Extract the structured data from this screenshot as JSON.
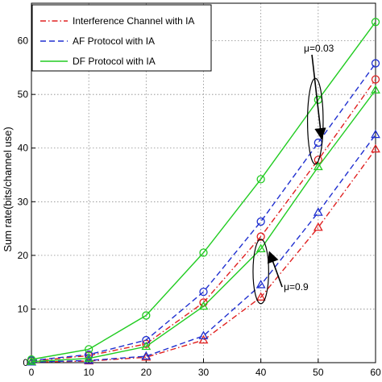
{
  "chart_data": {
    "type": "line",
    "ylabel": "Sum rate(bits/channel use)",
    "xlabel": "",
    "xlim": [
      0,
      60
    ],
    "ylim": [
      0,
      67
    ],
    "x_ticks": [
      0,
      10,
      20,
      30,
      40,
      50,
      60
    ],
    "y_ticks": [
      0,
      10,
      20,
      30,
      40,
      50,
      60
    ],
    "grid": true,
    "legend": {
      "placement": "top-left",
      "entries": [
        {
          "label": "Interference Channel with IA",
          "color": "#e02020",
          "dash": "dashdot"
        },
        {
          "label": "AF Protocol with IA",
          "color": "#1f2fd0",
          "dash": "dashed"
        },
        {
          "label": "DF Protocol with IA",
          "color": "#22cc22",
          "dash": "solid"
        }
      ]
    },
    "x": [
      0,
      10,
      20,
      30,
      40,
      50,
      60
    ],
    "series": [
      {
        "group": "mu=0.03",
        "color": "#e02020",
        "dash": "dashdot",
        "marker": "circle",
        "values": [
          0.3,
          1.3,
          3.5,
          11.2,
          23.5,
          37.8,
          52.8
        ]
      },
      {
        "group": "mu=0.03",
        "color": "#1f2fd0",
        "dash": "dashed",
        "marker": "circle",
        "values": [
          0.4,
          1.5,
          4.2,
          13.2,
          26.3,
          41.0,
          55.8
        ]
      },
      {
        "group": "mu=0.03",
        "color": "#22cc22",
        "dash": "solid",
        "marker": "circle",
        "values": [
          0.6,
          2.5,
          8.8,
          20.5,
          34.2,
          49.0,
          63.5
        ]
      },
      {
        "group": "mu=0.9",
        "color": "#e02020",
        "dash": "dashdot",
        "marker": "triangle",
        "values": [
          0.1,
          0.3,
          1.0,
          4.2,
          12.2,
          25.2,
          39.8
        ]
      },
      {
        "group": "mu=0.9",
        "color": "#1f2fd0",
        "dash": "dashed",
        "marker": "triangle",
        "values": [
          0.1,
          0.4,
          1.2,
          5.0,
          14.5,
          28.0,
          42.5
        ]
      },
      {
        "group": "mu=0.9",
        "color": "#22cc22",
        "dash": "solid",
        "marker": "triangle",
        "values": [
          0.2,
          0.8,
          3.0,
          10.5,
          21.2,
          36.5,
          50.8
        ]
      }
    ],
    "annotations": [
      {
        "text": "μ=0.03",
        "ellipse_center": [
          49.5,
          45
        ],
        "ellipse_radius": [
          0.8,
          8
        ],
        "text_at": [
          47.5,
          58
        ]
      },
      {
        "text": "μ=0.9",
        "ellipse_center": [
          40,
          17
        ],
        "ellipse_radius": [
          0.8,
          6
        ],
        "text_at": [
          44,
          13.5
        ]
      }
    ]
  }
}
